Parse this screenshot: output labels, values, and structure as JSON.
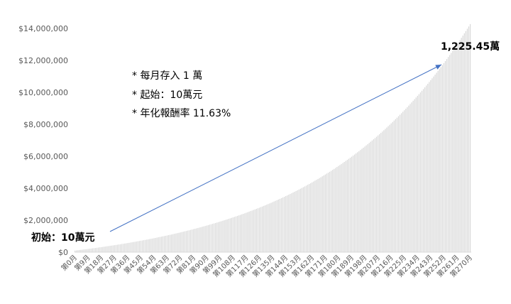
{
  "chart_data": {
    "type": "bar",
    "monthly_deposit": 10000,
    "initial_amount": 100000,
    "annual_return": 0.1163,
    "months": 271,
    "category_prefix": "第",
    "category_suffix": "月",
    "x_label_every": 9,
    "y_ticks": [
      "$0",
      "$2,000,000",
      "$4,000,000",
      "$6,000,000",
      "$8,000,000",
      "$10,000,000",
      "$12,000,000",
      "$14,000,000"
    ],
    "ylim": [
      0,
      14000000
    ],
    "final_value": 12254500,
    "bar_color": "#d9d9d9",
    "arrow_color": "#4472c4",
    "grid": false
  },
  "annotations": {
    "notes": [
      "* 每月存入 1 萬",
      "* 起始：10萬元",
      "* 年化報酬率 11.63%"
    ],
    "start_label": "初始：10萬元",
    "end_label": "1,225.45萬"
  }
}
